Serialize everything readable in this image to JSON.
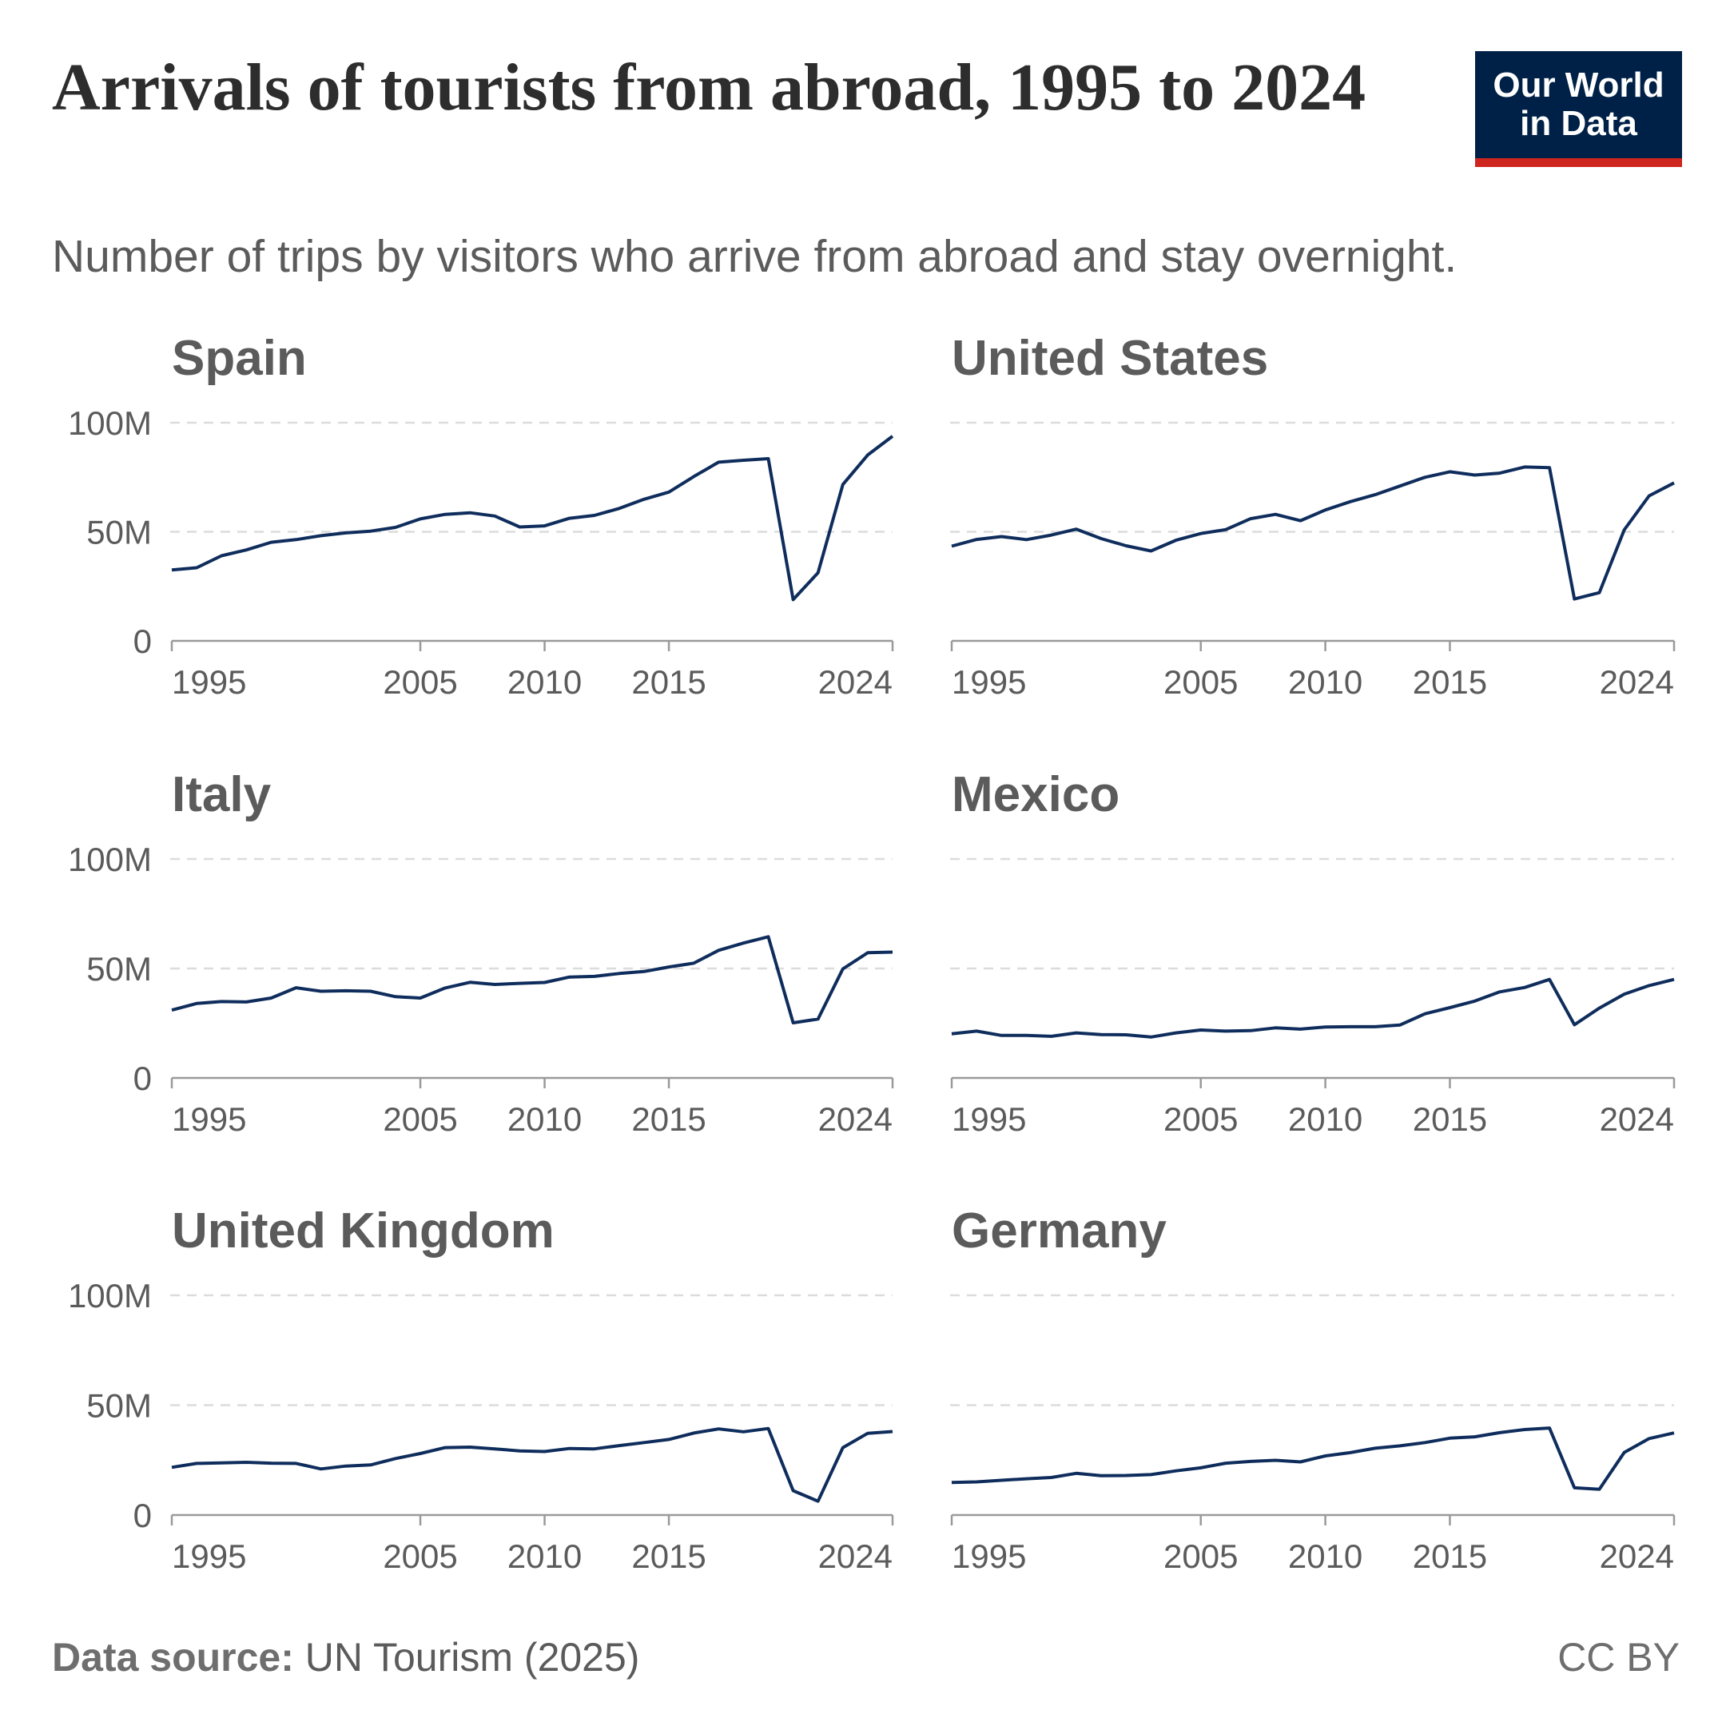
{
  "title": "Arrivals of tourists from abroad, 1995 to 2024",
  "subtitle": "Number of trips by visitors who arrive from abroad and stay overnight.",
  "logo": [
    "Our World",
    "in Data"
  ],
  "source_label": "Data source:",
  "source": "UN Tourism (2025)",
  "license": "CC BY",
  "chart_data": [
    {
      "type": "line",
      "title": "Spain",
      "color": "#0f2d5c",
      "grid": true,
      "ytick_labels": true,
      "xlim": [
        1995,
        2024
      ],
      "xticks": [
        1995,
        2005,
        2010,
        2015,
        2024
      ],
      "ylim": [
        0,
        100000000
      ],
      "yticks": [
        0,
        {
          "value": 50000000,
          "label": "50M"
        },
        {
          "value": 100000000,
          "label": "100M"
        }
      ],
      "x": [
        1995,
        1996,
        1997,
        1998,
        1999,
        2000,
        2001,
        2002,
        2003,
        2004,
        2005,
        2006,
        2007,
        2008,
        2009,
        2010,
        2011,
        2012,
        2013,
        2014,
        2015,
        2016,
        2017,
        2018,
        2019,
        2020,
        2021,
        2022,
        2023,
        2024
      ],
      "values": [
        32500000,
        33500000,
        39000000,
        41700000,
        45200000,
        46400000,
        48200000,
        49500000,
        50300000,
        52000000,
        55900000,
        58000000,
        58700000,
        57200000,
        52200000,
        52700000,
        56200000,
        57500000,
        60700000,
        64900000,
        68200000,
        75300000,
        81900000,
        82800000,
        83500000,
        18900000,
        31200000,
        71700000,
        85200000,
        93800000
      ]
    },
    {
      "type": "line",
      "title": "United States",
      "color": "#0f2d5c",
      "grid": true,
      "ytick_labels": false,
      "xlim": [
        1995,
        2024
      ],
      "xticks": [
        1995,
        2005,
        2010,
        2015,
        2024
      ],
      "ylim": [
        0,
        100000000
      ],
      "yticks": [
        0,
        50000000,
        100000000
      ],
      "x": [
        1995,
        1996,
        1997,
        1998,
        1999,
        2000,
        2001,
        2002,
        2003,
        2004,
        2005,
        2006,
        2007,
        2008,
        2009,
        2010,
        2011,
        2012,
        2013,
        2014,
        2015,
        2016,
        2017,
        2018,
        2019,
        2020,
        2021,
        2022,
        2023,
        2024
      ],
      "values": [
        43400000,
        46500000,
        47800000,
        46400000,
        48500000,
        51200000,
        46900000,
        43600000,
        41200000,
        46100000,
        49200000,
        51000000,
        56000000,
        58000000,
        55100000,
        60000000,
        63800000,
        67000000,
        71000000,
        75000000,
        77500000,
        76000000,
        76900000,
        79700000,
        79400000,
        19200000,
        22100000,
        50900000,
        66500000,
        72400000
      ]
    },
    {
      "type": "line",
      "title": "Italy",
      "color": "#0f2d5c",
      "grid": true,
      "ytick_labels": true,
      "xlim": [
        1995,
        2024
      ],
      "xticks": [
        1995,
        2005,
        2010,
        2015,
        2024
      ],
      "ylim": [
        0,
        100000000
      ],
      "yticks": [
        0,
        {
          "value": 50000000,
          "label": "50M"
        },
        {
          "value": 100000000,
          "label": "100M"
        }
      ],
      "x": [
        1995,
        1996,
        1997,
        1998,
        1999,
        2000,
        2001,
        2002,
        2003,
        2004,
        2005,
        2006,
        2007,
        2008,
        2009,
        2010,
        2011,
        2012,
        2013,
        2014,
        2015,
        2016,
        2017,
        2018,
        2019,
        2020,
        2021,
        2022,
        2023,
        2024
      ],
      "values": [
        31000000,
        34000000,
        34900000,
        34700000,
        36500000,
        41200000,
        39600000,
        39800000,
        39600000,
        37100000,
        36500000,
        41100000,
        43700000,
        42700000,
        43200000,
        43600000,
        46100000,
        46400000,
        47700000,
        48600000,
        50700000,
        52400000,
        58300000,
        61600000,
        64500000,
        25200000,
        26900000,
        49800000,
        57200000,
        57500000
      ]
    },
    {
      "type": "line",
      "title": "Mexico",
      "color": "#0f2d5c",
      "grid": true,
      "ytick_labels": false,
      "xlim": [
        1995,
        2024
      ],
      "xticks": [
        1995,
        2005,
        2010,
        2015,
        2024
      ],
      "ylim": [
        0,
        100000000
      ],
      "yticks": [
        0,
        50000000,
        100000000
      ],
      "x": [
        1995,
        1996,
        1997,
        1998,
        1999,
        2000,
        2001,
        2002,
        2003,
        2004,
        2005,
        2006,
        2007,
        2008,
        2009,
        2010,
        2011,
        2012,
        2013,
        2014,
        2015,
        2016,
        2017,
        2018,
        2019,
        2020,
        2021,
        2022,
        2023,
        2024
      ],
      "values": [
        20200000,
        21400000,
        19400000,
        19400000,
        19000000,
        20600000,
        19800000,
        19700000,
        18700000,
        20600000,
        21900000,
        21400000,
        21600000,
        22900000,
        22300000,
        23300000,
        23400000,
        23400000,
        24200000,
        29300000,
        32100000,
        35100000,
        39300000,
        41300000,
        45000000,
        24300000,
        31900000,
        38300000,
        42200000,
        45000000
      ]
    },
    {
      "type": "line",
      "title": "United Kingdom",
      "color": "#0f2d5c",
      "grid": true,
      "ytick_labels": true,
      "xlim": [
        1995,
        2024
      ],
      "xticks": [
        1995,
        2005,
        2010,
        2015,
        2024
      ],
      "ylim": [
        0,
        100000000
      ],
      "yticks": [
        0,
        {
          "value": 50000000,
          "label": "50M"
        },
        {
          "value": 100000000,
          "label": "100M"
        }
      ],
      "x": [
        1995,
        1996,
        1997,
        1998,
        1999,
        2000,
        2001,
        2002,
        2003,
        2004,
        2005,
        2006,
        2007,
        2008,
        2009,
        2010,
        2011,
        2012,
        2013,
        2014,
        2015,
        2016,
        2017,
        2018,
        2019,
        2020,
        2021,
        2022,
        2023,
        2024
      ],
      "values": [
        21700000,
        23500000,
        23700000,
        24000000,
        23600000,
        23500000,
        21000000,
        22300000,
        22800000,
        25700000,
        28000000,
        30700000,
        30900000,
        30100000,
        29200000,
        28900000,
        30300000,
        30100000,
        31600000,
        33000000,
        34400000,
        37300000,
        39200000,
        37900000,
        39400000,
        11100000,
        6300000,
        30700000,
        37200000,
        38000000
      ]
    },
    {
      "type": "line",
      "title": "Germany",
      "color": "#0f2d5c",
      "grid": true,
      "ytick_labels": false,
      "xlim": [
        1995,
        2024
      ],
      "xticks": [
        1995,
        2005,
        2010,
        2015,
        2024
      ],
      "ylim": [
        0,
        100000000
      ],
      "yticks": [
        0,
        50000000,
        100000000
      ],
      "x": [
        1995,
        1996,
        1997,
        1998,
        1999,
        2000,
        2001,
        2002,
        2003,
        2004,
        2005,
        2006,
        2007,
        2008,
        2009,
        2010,
        2011,
        2012,
        2013,
        2014,
        2015,
        2016,
        2017,
        2018,
        2019,
        2020,
        2021,
        2022,
        2023,
        2024
      ],
      "values": [
        14800000,
        15100000,
        15800000,
        16500000,
        17100000,
        19000000,
        17900000,
        18000000,
        18400000,
        20100000,
        21500000,
        23600000,
        24400000,
        24900000,
        24200000,
        26900000,
        28400000,
        30400000,
        31500000,
        33000000,
        35000000,
        35600000,
        37500000,
        38900000,
        39600000,
        12400000,
        11700000,
        28500000,
        34800000,
        37400000
      ]
    }
  ]
}
